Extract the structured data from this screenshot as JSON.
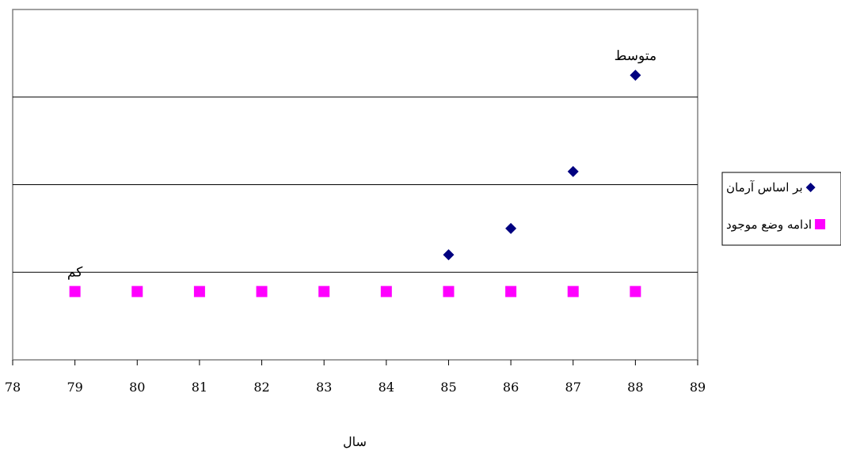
{
  "chart_data": {
    "type": "scatter",
    "title": "",
    "xlabel": "سال",
    "ylabel": "",
    "xlim": [
      78,
      89
    ],
    "ylim": [
      0,
      4
    ],
    "x_ticks": [
      "78",
      "79",
      "80",
      "81",
      "82",
      "83",
      "84",
      "85",
      "86",
      "87",
      "88",
      "89"
    ],
    "grid": "horizontal",
    "legend_position": "right",
    "series": [
      {
        "name": "بر اساس آرمان",
        "marker": "diamond",
        "color": "#000080",
        "x": [
          85,
          86,
          87,
          88
        ],
        "y": [
          1.2,
          1.5,
          2.15,
          3.25
        ]
      },
      {
        "name": "ادامه وضع موجود",
        "marker": "square",
        "color": "#FF00FF",
        "x": [
          79,
          80,
          81,
          82,
          83,
          84,
          85,
          86,
          87,
          88
        ],
        "y": [
          0.78,
          0.78,
          0.78,
          0.78,
          0.78,
          0.78,
          0.78,
          0.78,
          0.78,
          0.78
        ]
      }
    ],
    "annotations": [
      {
        "text": "متوسط",
        "x": 88,
        "y": 3.25
      },
      {
        "text": "کم",
        "x": 79,
        "y": 0.78
      }
    ]
  }
}
